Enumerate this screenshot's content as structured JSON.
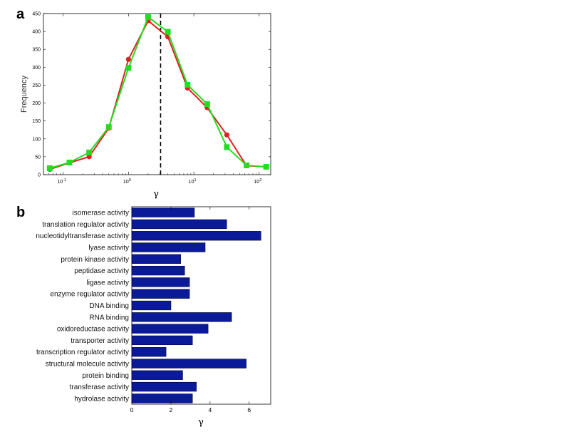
{
  "chart_data": [
    {
      "panel": "a",
      "type": "line",
      "xlabel": "γ",
      "ylabel": "Frequency",
      "xscale": "log",
      "xlim": [
        0.05,
        150
      ],
      "ylim": [
        0,
        450
      ],
      "yticks": [
        0,
        50,
        100,
        150,
        200,
        250,
        300,
        350,
        400,
        450
      ],
      "xticks": [
        {
          "value": 0.1,
          "base": "10",
          "exp": "-1"
        },
        {
          "value": 1,
          "base": "10",
          "exp": "0"
        },
        {
          "value": 10,
          "base": "10",
          "exp": "1"
        },
        {
          "value": 100,
          "base": "10",
          "exp": "2"
        }
      ],
      "dashed_vline_x": 3.1,
      "series": [
        {
          "color": "#dd2222",
          "marker": "circle",
          "x": [
            0.0625,
            0.125,
            0.25,
            0.5,
            1,
            2,
            4,
            8,
            16,
            32,
            64,
            128
          ],
          "y": [
            15,
            33,
            50,
            130,
            322,
            430,
            385,
            242,
            187,
            111,
            25,
            22
          ]
        },
        {
          "color": "#22dd22",
          "marker": "square",
          "x": [
            0.0625,
            0.125,
            0.25,
            0.5,
            1,
            2,
            4,
            8,
            16,
            32,
            64,
            128
          ],
          "y": [
            18,
            34,
            62,
            133,
            298,
            440,
            399,
            251,
            197,
            77,
            26,
            22
          ]
        }
      ]
    },
    {
      "panel": "b",
      "type": "bar",
      "orientation": "horizontal",
      "xlabel": "γ",
      "xlim": [
        0,
        7.1
      ],
      "xticks": [
        0,
        2,
        4,
        6
      ],
      "bar_color": "#0a1a99",
      "categories": [
        "isomerase activity",
        "translation regulator activity",
        "nucleotidyltransferase activity",
        "lyase activity",
        "protein kinase activity",
        "peptidase activity",
        "ligase activity",
        "enzyme regulator activity",
        "DNA binding",
        "RNA binding",
        "oxidoreductase activity",
        "transporter activity",
        "transcription regulator activity",
        "structural molecule activity",
        "protein binding",
        "transferase activity",
        "hydrolase activity"
      ],
      "values": [
        3.2,
        4.85,
        6.6,
        3.75,
        2.5,
        2.7,
        2.95,
        2.95,
        2.0,
        5.1,
        3.9,
        3.1,
        1.75,
        5.85,
        2.6,
        3.3,
        3.1
      ]
    }
  ],
  "panel_labels": {
    "a": "a",
    "b": "b"
  }
}
